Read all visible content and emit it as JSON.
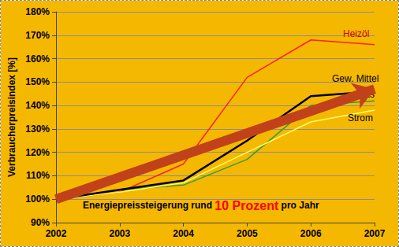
{
  "chart_data": {
    "type": "line",
    "y_label": "Verbraucherpreisindex [%]",
    "categories": [
      "2002",
      "2003",
      "2004",
      "2005",
      "2006",
      "2007"
    ],
    "series": [
      {
        "name": "Heizöl",
        "color": "#ff2020",
        "values": [
          100,
          103,
          115,
          152,
          168,
          166
        ]
      },
      {
        "name": "Gew. Mittel",
        "color": "#000000",
        "values": [
          100,
          104,
          108,
          125,
          144,
          146
        ]
      },
      {
        "name": "Gas",
        "color": "#2e9e3a",
        "values": [
          100,
          104,
          106,
          117,
          140,
          142
        ]
      },
      {
        "name": "Strom",
        "color": "#ffff66",
        "values": [
          100,
          103,
          107,
          120,
          133,
          138
        ]
      }
    ],
    "trend_arrow": {
      "from": [
        "2002",
        100
      ],
      "to": [
        "2007",
        147
      ],
      "color": "#c1411b"
    },
    "annotation": {
      "parts": [
        "Energiepreissteigerung rund ",
        "10 Prozent",
        " pro Jahr"
      ],
      "highlight_color": "#ff0000"
    },
    "ylim": [
      90,
      180
    ],
    "yticks": [
      {
        "value": 90,
        "label": "90%"
      },
      {
        "value": 100,
        "label": "100%"
      },
      {
        "value": 110,
        "label": "110%"
      },
      {
        "value": 120,
        "label": "120%"
      },
      {
        "value": 130,
        "label": "130%"
      },
      {
        "value": 140,
        "label": "140%"
      },
      {
        "value": 150,
        "label": "150%"
      },
      {
        "value": 160,
        "label": "160%"
      },
      {
        "value": 170,
        "label": "170%"
      },
      {
        "value": 180,
        "label": "180%"
      }
    ],
    "grid": true
  }
}
